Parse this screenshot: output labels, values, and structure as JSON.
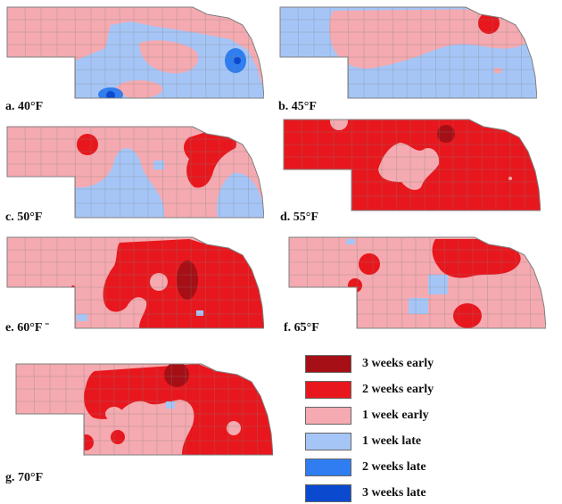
{
  "colors": {
    "weeks_3_early": "#a50f15",
    "weeks_2_early": "#e8171d",
    "weeks_1_early": "#f4aab0",
    "weeks_1_late": "#a6c5f7",
    "weeks_2_late": "#2f7df0",
    "weeks_3_late": "#0b49cf",
    "county_line": "#7f7f7f"
  },
  "panels": [
    {
      "label": "a. 40°F",
      "base": "weeks_1_early"
    },
    {
      "label": "b. 45°F",
      "base": "weeks_1_late"
    },
    {
      "label": "c. 50°F",
      "base": "weeks_1_early"
    },
    {
      "label": "d. 55°F",
      "base": "weeks_2_early"
    },
    {
      "label": "e. 60°F ˉ",
      "base": "weeks_1_early"
    },
    {
      "label": "f. 6̃5°F",
      "base": "weeks_1_early"
    },
    {
      "label": "g. 70°F",
      "base": "weeks_1_early"
    }
  ],
  "legend": [
    {
      "label": "3 weeks early",
      "color_key": "weeks_3_early"
    },
    {
      "label": "2 weeks early",
      "color_key": "weeks_2_early"
    },
    {
      "label": "1 week early",
      "color_key": "weeks_1_early"
    },
    {
      "label": "1 week late",
      "color_key": "weeks_1_late"
    },
    {
      "label": "2 weeks late",
      "color_key": "weeks_2_late"
    },
    {
      "label": "3 weeks late",
      "color_key": "weeks_3_late"
    }
  ]
}
